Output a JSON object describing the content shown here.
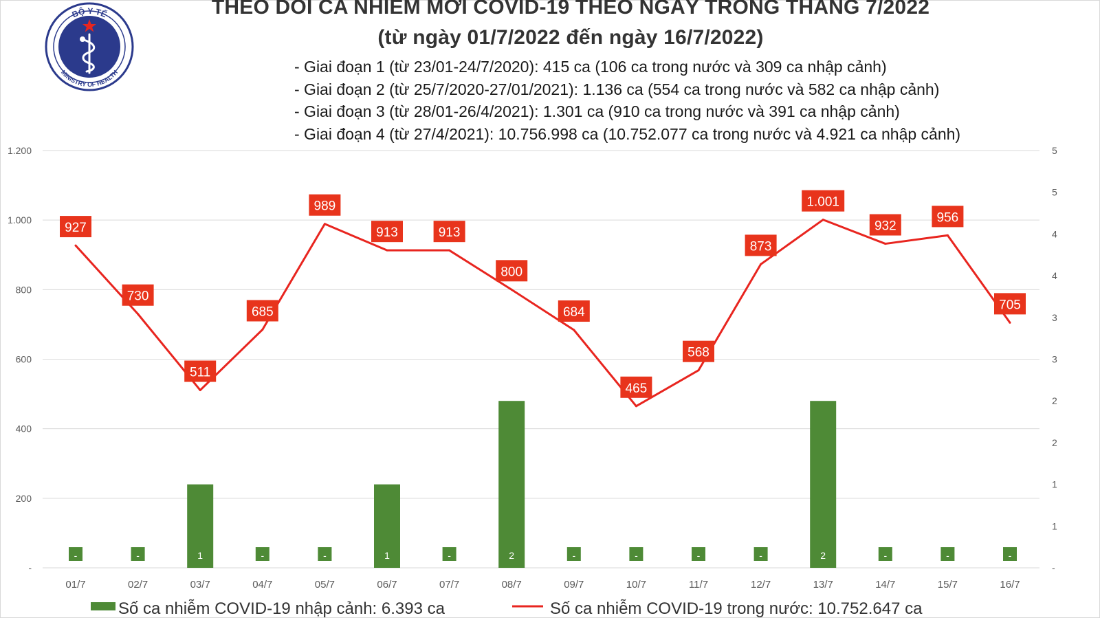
{
  "header": {
    "logo_text_top": "BỘ Y TẾ",
    "logo_text_bottom": "MINISTRY OF HEALTH",
    "title_line1": "THEO DÕI CA NHIỄM MỚI COVID-19 THEO NGÀY TRONG THÁNG 7/2022",
    "title_line2": "(từ ngày 01/7/2022 đến ngày 16/7/2022)",
    "phases": [
      "- Giai đoạn 1 (từ 23/01-24/7/2020): 415 ca (106 ca trong nước và 309 ca nhập cảnh)",
      "- Giai đoạn 2 (từ 25/7/2020-27/01/2021): 1.136 ca (554 ca trong nước và 582 ca nhập cảnh)",
      "- Giai đoạn 3 (từ 28/01-26/4/2021): 1.301 ca (910 ca trong nước và 391 ca nhập cảnh)",
      "- Giai đoạn 4 (từ 27/4/2021): 10.756.998 ca (10.752.077 ca trong nước và 4.921 ca nhập cảnh)"
    ]
  },
  "colors": {
    "line": "#e8251f",
    "label_box": "#e8341c",
    "bar": "#4e8a36",
    "grid": "#d9d9d9",
    "axis_text": "#595959",
    "title": "#333333"
  },
  "chart_data": {
    "type": "bar+line",
    "categories": [
      "01/7",
      "02/7",
      "03/7",
      "04/7",
      "05/7",
      "06/7",
      "07/7",
      "08/7",
      "09/7",
      "10/7",
      "11/7",
      "12/7",
      "13/7",
      "14/7",
      "15/7",
      "16/7"
    ],
    "series": [
      {
        "name": "Số ca nhiễm COVID-19 trong nước",
        "type": "line",
        "axis": "left",
        "values": [
          927,
          730,
          511,
          685,
          989,
          913,
          913,
          800,
          684,
          465,
          568,
          873,
          1001,
          932,
          956,
          705
        ],
        "labels": [
          "927",
          "730",
          "511",
          "685",
          "989",
          "913",
          "913",
          "800",
          "684",
          "465",
          "568",
          "873",
          "1.001",
          "932",
          "956",
          "705"
        ]
      },
      {
        "name": "Số ca nhiễm COVID-19 nhập cảnh",
        "type": "bar",
        "axis": "right",
        "values": [
          0,
          0,
          1,
          0,
          0,
          1,
          0,
          2,
          0,
          0,
          0,
          0,
          2,
          0,
          0,
          0
        ],
        "labels": [
          "-",
          "-",
          "1",
          "-",
          "-",
          "1",
          "-",
          "2",
          "-",
          "-",
          "-",
          "-",
          "2",
          "-",
          "-",
          "-"
        ]
      }
    ],
    "left_axis": {
      "ticks": [
        "-",
        "200",
        "400",
        "600",
        "800",
        "1.000",
        "1.200"
      ],
      "range": [
        0,
        1200
      ]
    },
    "right_axis": {
      "ticks": [
        "-",
        "1",
        "1",
        "2",
        "2",
        "3",
        "3",
        "4",
        "4",
        "5",
        "5"
      ],
      "range": [
        0,
        5
      ]
    },
    "legend_partial": [
      "Số ca nhiễm COVID-19 nhập cảnh: 6.393 ca",
      "Số ca nhiễm COVID-19 trong nước: 10.752.647 ca"
    ]
  }
}
